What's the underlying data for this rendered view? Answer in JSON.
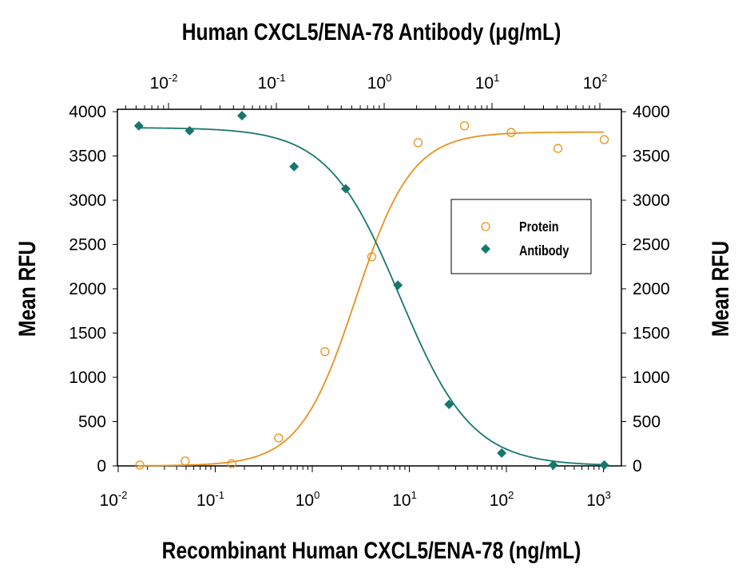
{
  "chart_data": {
    "type": "scatter",
    "title": "Human CXCL5/ENA-78 Antibody (μg/mL)",
    "xlabel": "Recombinant Human CXCL5/ENA-78 (ng/mL)",
    "x2label": "Human CXCL5/ENA-78 Antibody (μg/mL)",
    "ylabel": "Mean RFU",
    "y2label": "Mean RFU",
    "xscale": "log",
    "xlim": [
      0.01,
      1000
    ],
    "x2lim": [
      0.0033,
      170
    ],
    "ylim": [
      0,
      4000
    ],
    "xticks": [
      {
        "base": "10",
        "exp": "-2"
      },
      {
        "base": "10",
        "exp": "-1"
      },
      {
        "base": "10",
        "exp": "0"
      },
      {
        "base": "10",
        "exp": "1"
      },
      {
        "base": "10",
        "exp": "2"
      },
      {
        "base": "10",
        "exp": "3"
      }
    ],
    "x2ticks": [
      {
        "base": "10",
        "exp": "-2"
      },
      {
        "base": "10",
        "exp": "-1"
      },
      {
        "base": "10",
        "exp": "0"
      },
      {
        "base": "10",
        "exp": "1"
      },
      {
        "base": "10",
        "exp": "2"
      }
    ],
    "yticks": [
      "0",
      "500",
      "1000",
      "1500",
      "2000",
      "2500",
      "3000",
      "3500",
      "4000"
    ],
    "grid": false,
    "legend_position": "center-right",
    "series": [
      {
        "name": "Protein",
        "axis": "bottom",
        "marker": "open-circle",
        "color": "#E8921C",
        "x": [
          0.0167,
          0.049,
          0.148,
          0.45,
          1.35,
          4.1,
          12.3,
          37,
          112,
          340,
          1020
        ],
        "y": [
          10,
          55,
          25,
          315,
          1290,
          2360,
          3650,
          3840,
          3765,
          3585,
          3685
        ]
      },
      {
        "name": "Antibody",
        "axis": "top",
        "marker": "filled-diamond",
        "color": "#17776F",
        "x": [
          0.0053,
          0.0157,
          0.048,
          0.146,
          0.44,
          1.34,
          4.0,
          12.3,
          37,
          110
        ],
        "y": [
          3840,
          3785,
          3955,
          3380,
          3130,
          2040,
          695,
          145,
          10,
          10
        ]
      }
    ]
  }
}
